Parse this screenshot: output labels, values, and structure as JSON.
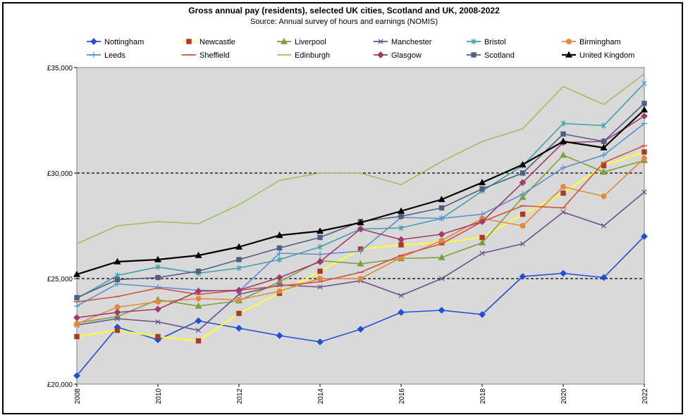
{
  "chart_data": {
    "type": "line",
    "title": "Gross annual pay (residents), selected UK cities, Scotland and UK, 2008-2022",
    "subtitle": "Source: Annual survey of hours and earnings (NOMIS)",
    "xlabel": "",
    "ylabel": "",
    "x": [
      2008,
      2009,
      2010,
      2011,
      2012,
      2013,
      2014,
      2015,
      2016,
      2017,
      2018,
      2019,
      2020,
      2021,
      2022
    ],
    "x_tick_labels": [
      "2008",
      "2010",
      "2012",
      "2014",
      "2016",
      "2018",
      "2020",
      "2022"
    ],
    "x_tick_values": [
      2008,
      2010,
      2012,
      2014,
      2016,
      2018,
      2020,
      2022
    ],
    "ylim": [
      20000,
      35000
    ],
    "y_tick_values": [
      20000,
      25000,
      30000,
      35000
    ],
    "y_tick_labels": [
      "£20,000",
      "£25,000",
      "£30,000",
      "£35,000"
    ],
    "reference_lines": [
      25000,
      30000
    ],
    "grid": false,
    "legend_position": "top",
    "plot_background": "#d9d9d9",
    "series": [
      {
        "name": "Nottingham",
        "color": "#1f4fd6",
        "marker": "diamond",
        "values": [
          20400,
          22700,
          22100,
          23000,
          22650,
          22300,
          22000,
          22600,
          23400,
          23500,
          23300,
          25100,
          25250,
          25050,
          27000
        ]
      },
      {
        "name": "Newcastle",
        "color": "#ffff33",
        "marker": "square",
        "marker_color": "#a8392b",
        "values": [
          22250,
          22550,
          22250,
          22050,
          23350,
          24300,
          25350,
          26400,
          26600,
          26700,
          26950,
          28050,
          29050,
          30350,
          31000
        ]
      },
      {
        "name": "Liverpool",
        "color": "#7f9f3f",
        "marker": "triangle",
        "values": [
          22900,
          23200,
          24000,
          23700,
          23950,
          24850,
          25850,
          25700,
          25950,
          26000,
          26700,
          28850,
          30850,
          30050,
          30600
        ]
      },
      {
        "name": "Manchester",
        "color": "#6a4f8a",
        "marker": "x",
        "values": [
          22800,
          23100,
          22950,
          22550,
          24250,
          24700,
          24600,
          24900,
          24200,
          25000,
          26200,
          26650,
          28150,
          27500,
          29100
        ]
      },
      {
        "name": "Bristol",
        "color": "#3f9faf",
        "marker": "asterisk",
        "values": [
          24050,
          25150,
          25550,
          25250,
          25500,
          25900,
          26500,
          27350,
          27400,
          27850,
          29150,
          30350,
          32350,
          32250,
          34250
        ]
      },
      {
        "name": "Birmingham",
        "color": "#e08a3c",
        "marker": "circle",
        "values": [
          22850,
          23650,
          23900,
          24050,
          24000,
          24400,
          25000,
          25000,
          26000,
          26800,
          27850,
          27500,
          29350,
          28900,
          30700
        ]
      },
      {
        "name": "Leeds",
        "color": "#5b8fce",
        "marker": "plus",
        "values": [
          23700,
          24750,
          24600,
          24450,
          24400,
          26200,
          26150,
          26300,
          27900,
          27850,
          28050,
          29000,
          30250,
          30850,
          32350
        ]
      },
      {
        "name": "Sheffield",
        "color": "#d05040",
        "marker": "dash",
        "values": [
          23900,
          24150,
          24550,
          24250,
          24450,
          24650,
          24850,
          25300,
          26100,
          26650,
          27700,
          28450,
          28350,
          30500,
          31300
        ]
      },
      {
        "name": "Edinburgh",
        "color": "#9fc05f",
        "marker": "none",
        "values": [
          26650,
          27500,
          27700,
          27600,
          28500,
          29650,
          30000,
          30000,
          29450,
          30550,
          31500,
          32100,
          34100,
          33250,
          34700
        ]
      },
      {
        "name": "Glasgow",
        "color": "#a03a6a",
        "marker": "diamond",
        "values": [
          23150,
          23400,
          23550,
          24400,
          24450,
          25050,
          25800,
          27350,
          26850,
          27100,
          27700,
          29550,
          31450,
          31500,
          32700
        ]
      },
      {
        "name": "Scotland",
        "color": "#4f5f7f",
        "marker": "square",
        "values": [
          24100,
          24950,
          25050,
          25350,
          25900,
          26450,
          26950,
          27700,
          27950,
          28350,
          29250,
          30000,
          31850,
          31500,
          33300
        ]
      },
      {
        "name": "United Kingdom",
        "color": "#000000",
        "marker": "triangle",
        "values": [
          25200,
          25800,
          25900,
          26100,
          26500,
          27050,
          27250,
          27650,
          28200,
          28750,
          29550,
          30400,
          31500,
          31200,
          33000
        ]
      }
    ]
  }
}
